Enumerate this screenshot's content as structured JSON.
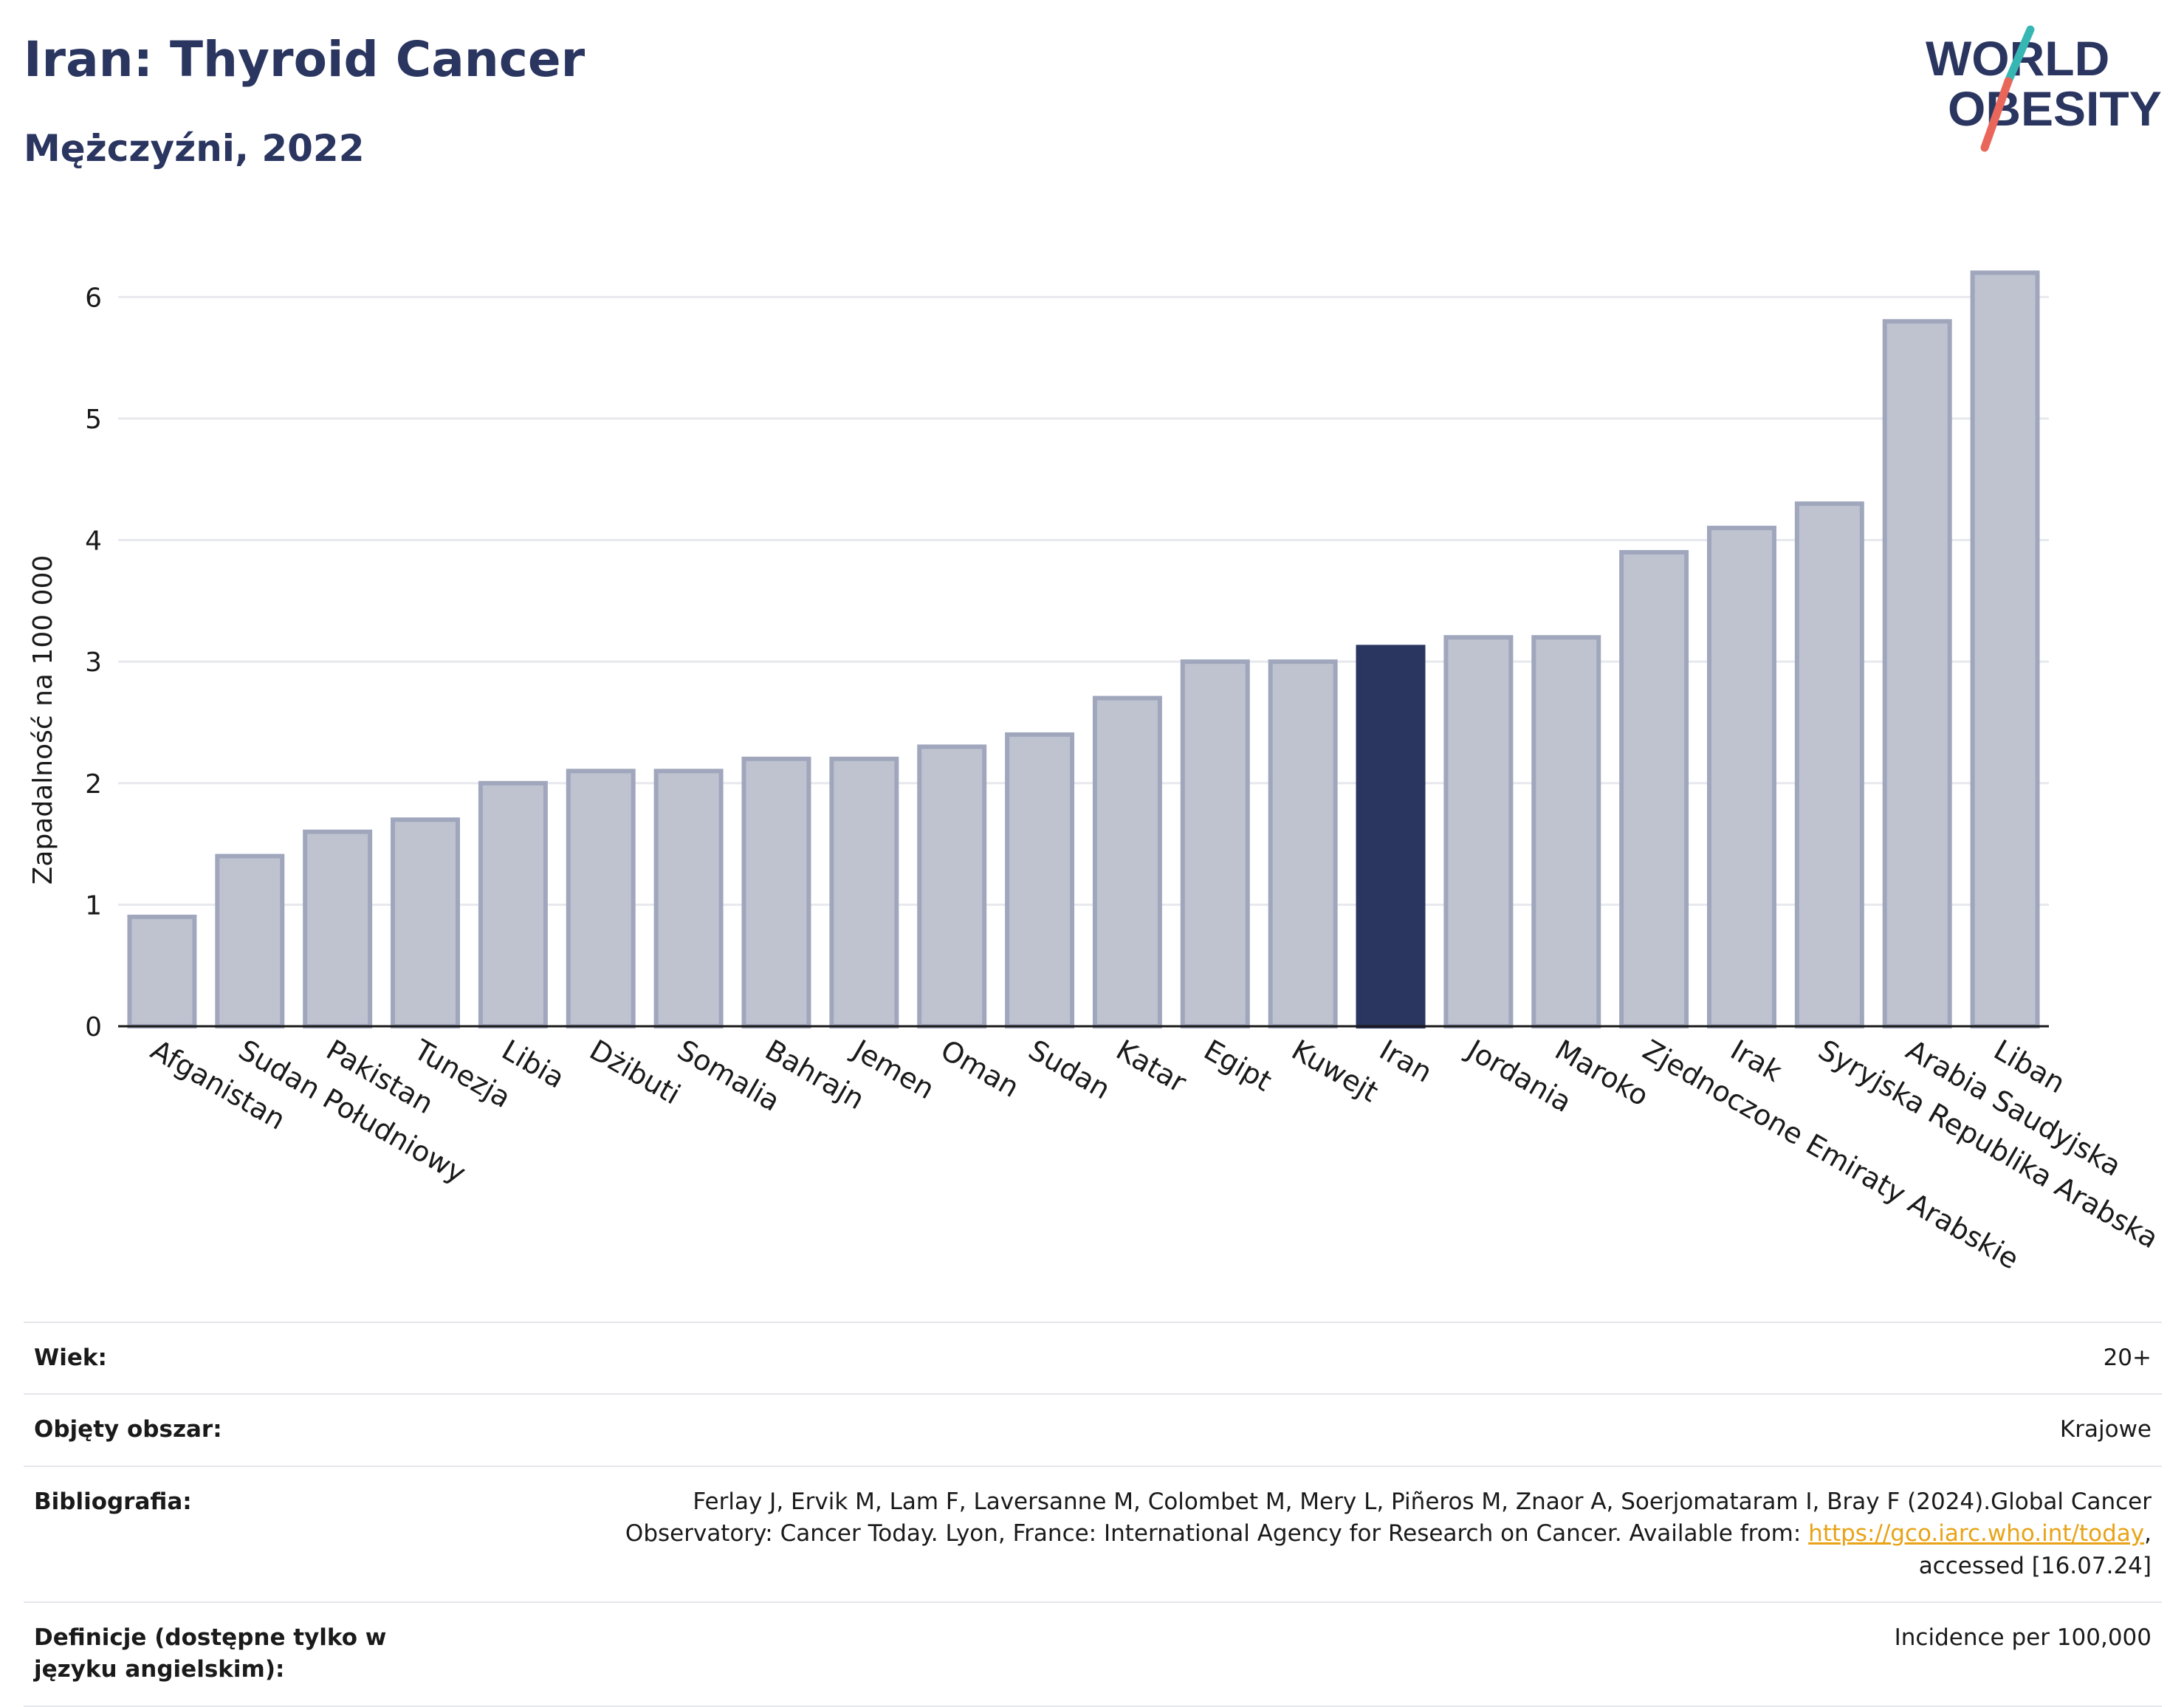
{
  "header": {
    "title": "Iran: Thyroid Cancer",
    "subtitle": "Mężczyźni, 2022"
  },
  "logo": {
    "line1": "WORLD",
    "line2": "OBESITY"
  },
  "colors": {
    "bar": "#bfc3d0",
    "bar_stroke": "#a0a7bd",
    "highlight": "#2a3560",
    "grid": "#e8e9ee",
    "title": "#2a3560",
    "link": "#e8a317",
    "logo_teal": "#36b7b4",
    "logo_coral": "#e8665a"
  },
  "chart_data": {
    "type": "bar",
    "ylabel": "Zapadalność na 100 000",
    "xlabel": "",
    "ylim": [
      0,
      6.5
    ],
    "yticks": [
      0,
      1,
      2,
      3,
      4,
      5,
      6
    ],
    "grid": true,
    "highlight": "Iran",
    "categories": [
      "Afganistan",
      "Sudan Południowy",
      "Pakistan",
      "Tunezja",
      "Libia",
      "Dżibuti",
      "Somalia",
      "Bahrajn",
      "Jemen",
      "Oman",
      "Sudan",
      "Katar",
      "Egipt",
      "Kuwejt",
      "Iran",
      "Jordania",
      "Maroko",
      "Zjednoczone Emiraty Arabskie",
      "Irak",
      "Syryjska Republika Arabska",
      "Arabia Saudyjska",
      "Liban"
    ],
    "values": [
      0.9,
      1.4,
      1.6,
      1.7,
      2.0,
      2.1,
      2.1,
      2.2,
      2.2,
      2.3,
      2.4,
      2.7,
      3.0,
      3.0,
      3.12,
      3.2,
      3.2,
      3.9,
      4.1,
      4.3,
      5.8,
      6.2
    ]
  },
  "info": {
    "age_label": "Wiek:",
    "age_value": "20+",
    "coverage_label": "Objęty obszar:",
    "coverage_value": "Krajowe",
    "bib_label": "Bibliografia:",
    "bib_line1": "Ferlay J, Ervik M, Lam F, Laversanne M, Colombet M, Mery L, Piñeros M, Znaor A, Soerjomataram I, Bray F (2024).Global Cancer",
    "bib_line2": "Observatory: Cancer Today. Lyon, France: International Agency for Research on Cancer. Available from: ",
    "bib_link": "https://gco.iarc.who.int/today",
    "bib_line2_end": ",",
    "bib_line3": "accessed [16.07.24]",
    "def_label": "Definicje (dostępne tylko w języku angielskim):",
    "def_value": "Incidence per 100,000"
  }
}
